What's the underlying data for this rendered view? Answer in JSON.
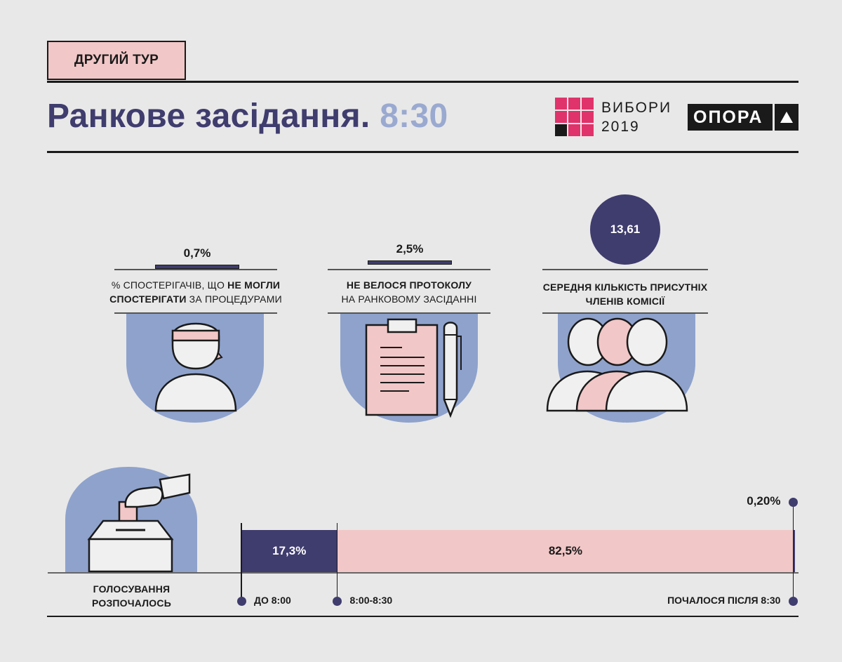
{
  "header": {
    "round_tag": "ДРУГИЙ ТУР",
    "title_main": "Ранкове засідання.",
    "title_time": "8:30",
    "elections_logo": {
      "line1": "ВИБОРИ",
      "line2": "2019"
    },
    "org_logo": "ОПОРА"
  },
  "stats": [
    {
      "value": "0,7%",
      "caption": {
        "line1_pre": "% СПОСТЕРІГАЧІВ, ЩО ",
        "line1_bold": "НЕ МОГЛИ",
        "line2_bold": "СПОСТЕРІГАТИ",
        "line2_post": " ЗА ПРОЦЕДУРАМИ"
      },
      "icon": "blindfolded-observer-icon"
    },
    {
      "value": "2,5%",
      "caption": {
        "line1_bold": "НЕ ВЕЛОСЯ ПРОТОКОЛУ",
        "line2": "НА РАНКОВОМУ ЗАСІДАННІ"
      },
      "icon": "clipboard-pencil-icon"
    },
    {
      "value": "13,61",
      "caption": {
        "line1": "СЕРЕДНЯ КІЛЬКІСТЬ ПРИСУТНІХ",
        "line2": "ЧЛЕНІВ КОМІСІЇ"
      },
      "icon": "commission-members-icon"
    }
  ],
  "voting": {
    "label_line1": "ГОЛОСУВАННЯ",
    "label_line2": "РОЗПОЧАЛОСЬ",
    "icon": "ballot-box-icon"
  },
  "chart_data": {
    "type": "bar",
    "orientation": "horizontal-stacked",
    "categories": [
      "ДО 8:00",
      "8:00-8:30",
      "ПОЧАЛОСЯ ПІСЛЯ 8:30"
    ],
    "values": [
      17.3,
      82.5,
      0.2
    ],
    "value_labels": [
      "17,3%",
      "82,5%",
      "0,20%"
    ],
    "colors": [
      "#3f3c6e",
      "#f2c7c7",
      "#3f3c6e"
    ],
    "xlim": [
      0,
      100
    ]
  },
  "colors": {
    "navy": "#3f3c6e",
    "pink": "#f2c7c7",
    "blue": "#8ea2cc",
    "background": "#e8e8e8",
    "logo_pink": "#e0336b"
  }
}
